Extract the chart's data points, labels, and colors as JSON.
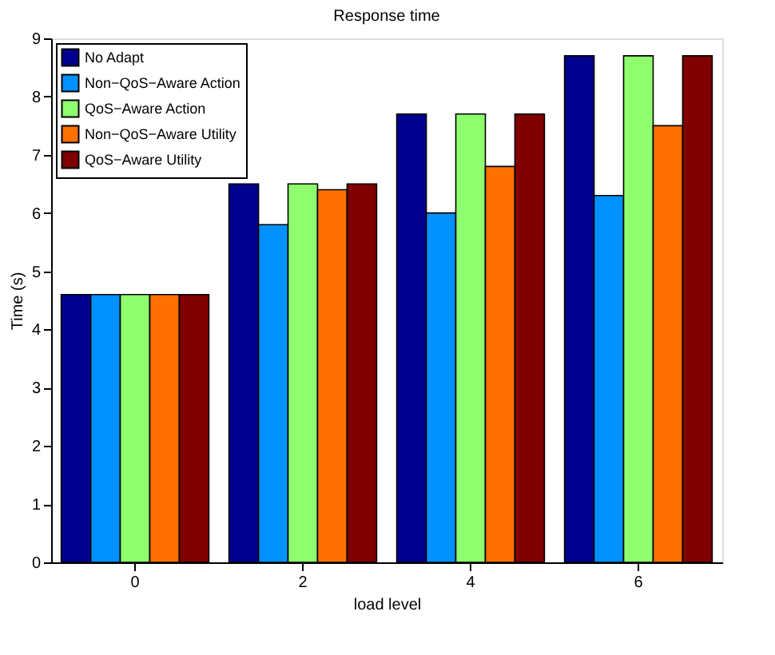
{
  "chart_data": {
    "type": "bar",
    "title": "Response time",
    "xlabel": "load level",
    "ylabel": "Time (s)",
    "categories": [
      "0",
      "2",
      "4",
      "6"
    ],
    "series": [
      {
        "name": "No Adapt",
        "color": "#00008f",
        "values": [
          4.6,
          6.5,
          7.7,
          8.7
        ]
      },
      {
        "name": "Non−QoS−Aware Action",
        "color": "#0090ff",
        "values": [
          4.6,
          5.8,
          6.0,
          6.3
        ]
      },
      {
        "name": "QoS−Aware Action",
        "color": "#8fff70",
        "values": [
          4.6,
          6.5,
          7.7,
          8.7
        ]
      },
      {
        "name": "Non−QoS−Aware Utility",
        "color": "#ff7000",
        "values": [
          4.6,
          6.4,
          6.8,
          7.5
        ]
      },
      {
        "name": "QoS−Aware Utility",
        "color": "#800000",
        "values": [
          4.6,
          6.5,
          7.7,
          8.7
        ]
      }
    ],
    "ylim": [
      0,
      9
    ],
    "yticks": [
      0,
      1,
      2,
      3,
      4,
      5,
      6,
      7,
      8,
      9
    ],
    "grid": false,
    "legend": "top left"
  }
}
